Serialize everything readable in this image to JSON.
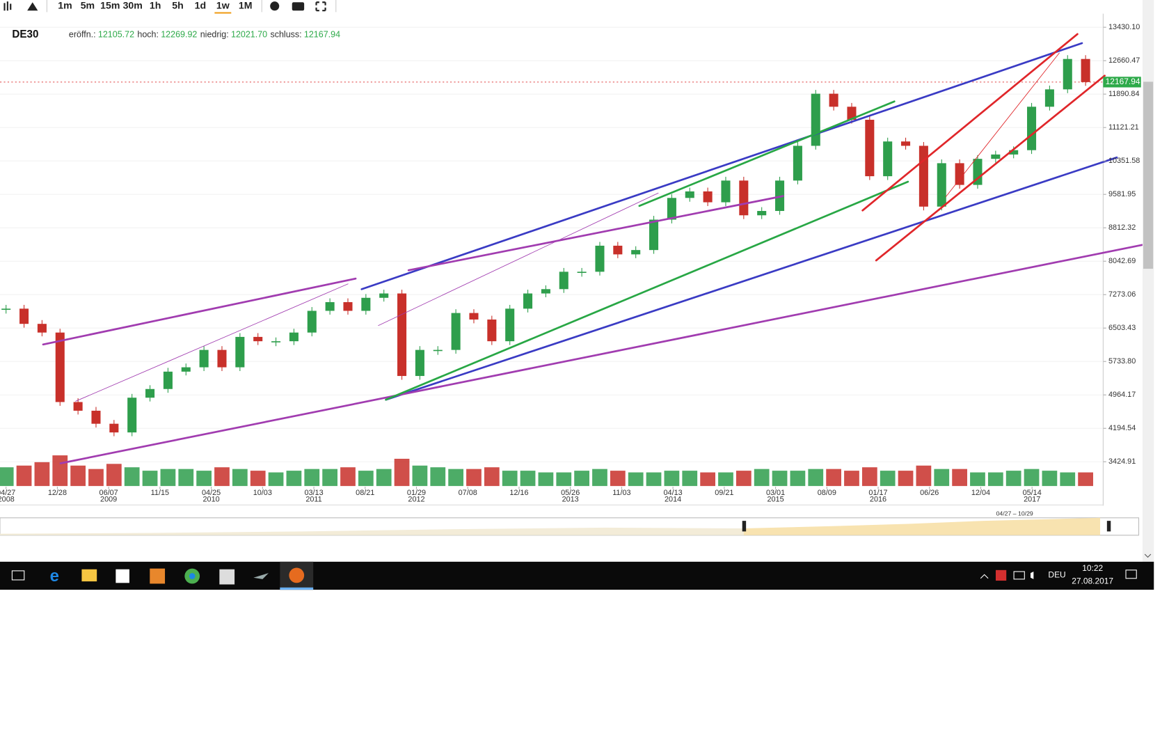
{
  "toolbar": {
    "intervals": [
      "1m",
      "5m",
      "15m",
      "30m",
      "1h",
      "5h",
      "1d",
      "1w",
      "1M"
    ],
    "active": 7
  },
  "header": {
    "symbol": "DE30",
    "fields": [
      {
        "label": "eröffn.:",
        "value": "12105.72"
      },
      {
        "label": "hoch:",
        "value": "12269.92"
      },
      {
        "label": "niedrig:",
        "value": "12021.70"
      },
      {
        "label": "schluss:",
        "value": "12167.94"
      }
    ]
  },
  "chart_data": {
    "type": "candlestick",
    "closes": [
      6950,
      6600,
      6400,
      4800,
      4600,
      4300,
      4100,
      4900,
      5100,
      5500,
      5600,
      6000,
      5600,
      6300,
      6200,
      6200,
      6400,
      6900,
      7100,
      6900,
      7200,
      7300,
      5400,
      6000,
      6000,
      6850,
      6700,
      6200,
      6950,
      7300,
      7400,
      7800,
      7800,
      8400,
      8200,
      8300,
      9000,
      9500,
      9650,
      9400,
      9900,
      9100,
      9200,
      9900,
      10700,
      11900,
      11600,
      11300,
      10000,
      10800,
      10700,
      9300,
      10300,
      9800,
      10400,
      10500,
      10600,
      11600,
      12000,
      12700,
      12167.94
    ],
    "volume": [
      55,
      60,
      70,
      90,
      60,
      50,
      65,
      55,
      45,
      50,
      50,
      45,
      55,
      50,
      45,
      40,
      45,
      50,
      50,
      55,
      45,
      50,
      80,
      60,
      55,
      50,
      50,
      55,
      45,
      45,
      40,
      40,
      45,
      50,
      45,
      40,
      40,
      45,
      45,
      40,
      40,
      45,
      50,
      45,
      45,
      50,
      50,
      45,
      55,
      45,
      45,
      60,
      50,
      50,
      40,
      40,
      45,
      50,
      45,
      40,
      40
    ],
    "volume_lim": [
      0,
      100
    ],
    "up_color": "#2e9e4c",
    "down_color": "#c8302a",
    "xticks": [
      {
        "label": "04/27",
        "year": "2008"
      },
      {
        "label": "12/28"
      },
      {
        "label": "06/07",
        "year": "2009"
      },
      {
        "label": "11/15"
      },
      {
        "label": "04/25",
        "year": "2010"
      },
      {
        "label": "10/03"
      },
      {
        "label": "03/13",
        "year": "2011"
      },
      {
        "label": "08/21"
      },
      {
        "label": "01/29",
        "year": "2012"
      },
      {
        "label": "07/08"
      },
      {
        "label": "12/16"
      },
      {
        "label": "05/26",
        "year": "2013"
      },
      {
        "label": "11/03"
      },
      {
        "label": "04/13",
        "year": "2014"
      },
      {
        "label": "09/21"
      },
      {
        "label": "03/01",
        "year": "2015"
      },
      {
        "label": "08/09"
      },
      {
        "label": "01/17",
        "year": "2016"
      },
      {
        "label": "06/26"
      },
      {
        "label": "12/04"
      },
      {
        "label": "05/14",
        "year": "2017"
      }
    ],
    "ylim": [
      2465,
      13744
    ],
    "yticks": [
      {
        "value": 13430.1,
        "label": "13430.10"
      },
      {
        "value": 12660.47,
        "label": "12660.47"
      },
      {
        "value": 11890.84,
        "label": "11890.84"
      },
      {
        "value": 11121.21,
        "label": "11121.21"
      },
      {
        "value": 10351.58,
        "label": "10351.58"
      },
      {
        "value": 9581.95,
        "label": "9581.95"
      },
      {
        "value": 8812.32,
        "label": "8812.32"
      },
      {
        "value": 8042.69,
        "label": "8042.69"
      },
      {
        "value": 7273.06,
        "label": "7273.06"
      },
      {
        "value": 6503.43,
        "label": "6503.43"
      },
      {
        "value": 5733.8,
        "label": "5733.80"
      },
      {
        "value": 4964.17,
        "label": "4964.17"
      },
      {
        "value": 4194.54,
        "label": "4194.54"
      },
      {
        "value": 3424.91,
        "label": "3424.91"
      }
    ],
    "last_price": {
      "value": 12167.94,
      "label": "12167.94"
    },
    "grid": true
  },
  "navigator": {
    "range_label": "04/27 – 10/29"
  },
  "taskbar": {
    "language": "DEU",
    "time": "10:22",
    "date": "27.08.2017"
  }
}
